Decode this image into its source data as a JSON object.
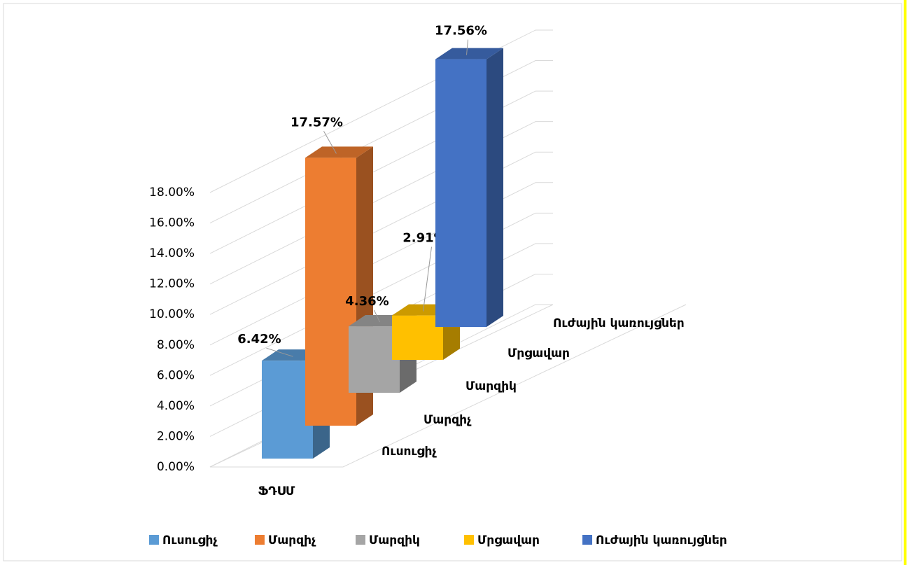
{
  "chart_data": {
    "type": "bar3d",
    "x_category": "ՖԴՍՄ",
    "series": [
      {
        "name": "Ուսուցիչ",
        "color": "#5b9bd5",
        "values": [
          6.42
        ],
        "value_labels": [
          "6.42%"
        ]
      },
      {
        "name": "Մարզիչ",
        "color": "#ed7d31",
        "values": [
          17.57
        ],
        "value_labels": [
          "17.57%"
        ]
      },
      {
        "name": "Մարզիկ",
        "color": "#a5a5a5",
        "values": [
          4.36
        ],
        "value_labels": [
          "4.36%"
        ]
      },
      {
        "name": "Մրցավար",
        "color": "#ffc000",
        "values": [
          2.91
        ],
        "value_labels": [
          "2.91%"
        ]
      },
      {
        "name": "Ուժային կառույցներ",
        "color": "#4472c4",
        "values": [
          17.56
        ],
        "value_labels": [
          "17.56%"
        ]
      }
    ],
    "ylim": [
      0,
      18
    ],
    "yticks": [
      {
        "value": 0,
        "label": "0.00%"
      },
      {
        "value": 2,
        "label": "2.00%"
      },
      {
        "value": 4,
        "label": "4.00%"
      },
      {
        "value": 6,
        "label": "6.00%"
      },
      {
        "value": 8,
        "label": "8.00%"
      },
      {
        "value": 10,
        "label": "10.00%"
      },
      {
        "value": 12,
        "label": "12.00%"
      },
      {
        "value": 14,
        "label": "14.00%"
      },
      {
        "value": 16,
        "label": "16.00%"
      },
      {
        "value": 18,
        "label": "18.00%"
      }
    ],
    "grid": true,
    "legend": "bottom"
  }
}
